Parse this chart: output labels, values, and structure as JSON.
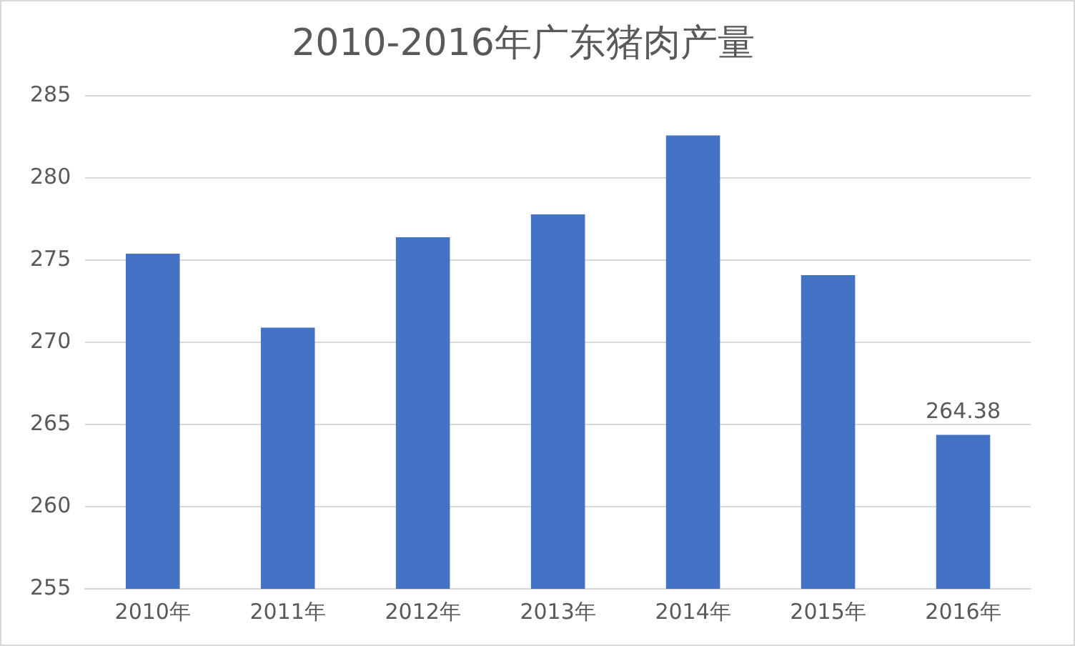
{
  "chart_data": {
    "type": "bar",
    "title": "2010-2016年广东猪肉产量",
    "categories": [
      "2010年",
      "2011年",
      "2012年",
      "2013年",
      "2014年",
      "2015年",
      "2016年"
    ],
    "values": [
      275.4,
      270.9,
      276.4,
      277.8,
      282.6,
      274.1,
      264.38
    ],
    "value_labels": [
      null,
      null,
      null,
      null,
      null,
      null,
      "264.38"
    ],
    "color": "#4472c4",
    "ylim": [
      255,
      285
    ],
    "yticks": [
      255,
      260,
      265,
      270,
      275,
      280,
      285
    ],
    "grid": "y"
  }
}
